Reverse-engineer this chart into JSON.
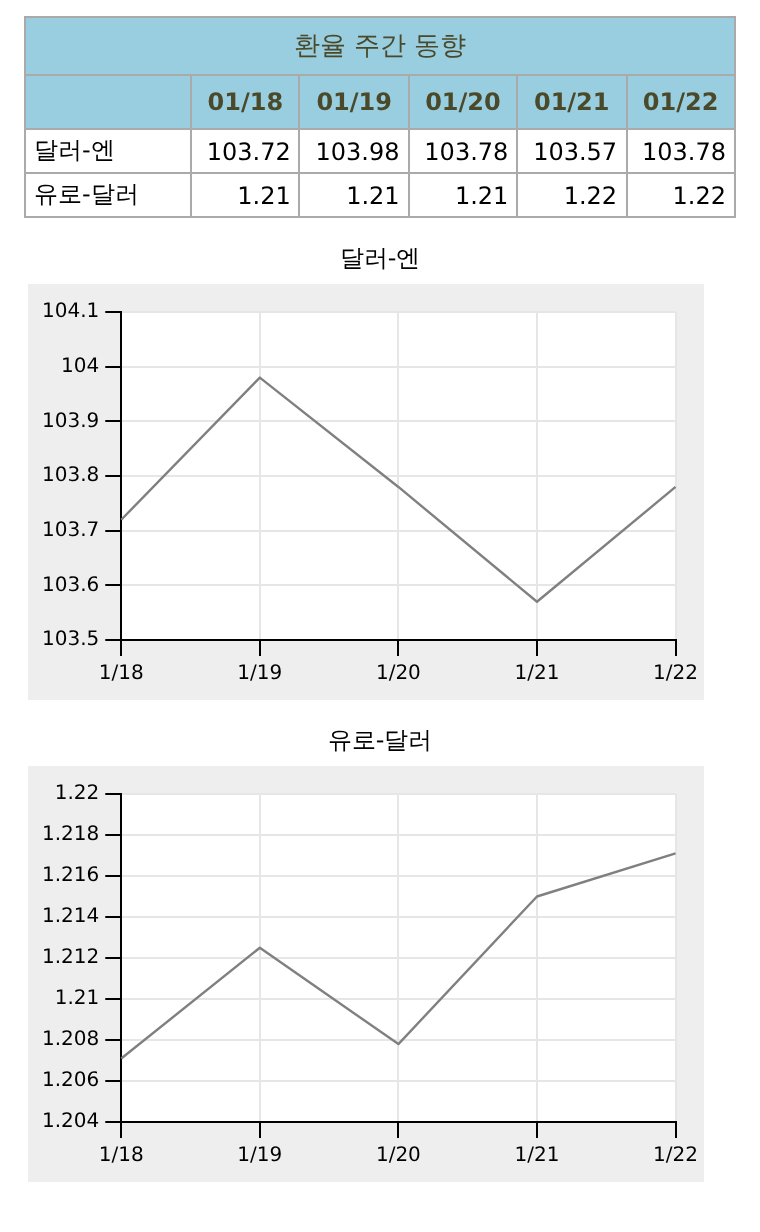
{
  "chart_data": [
    {
      "type": "other",
      "title": "환율 주간 동향",
      "categories": [
        "01/18",
        "01/19",
        "01/20",
        "01/21",
        "01/22"
      ],
      "data_labels": true,
      "series": [
        {
          "name": "달러-엔",
          "values": [
            103.72,
            103.98,
            103.78,
            103.57,
            103.78
          ]
        },
        {
          "name": "유로-달러",
          "values": [
            1.21,
            1.21,
            1.21,
            1.22,
            1.22
          ]
        }
      ]
    },
    {
      "type": "line",
      "title": "달러-엔",
      "categories": [
        "1/18",
        "1/19",
        "1/20",
        "1/21",
        "1/22"
      ],
      "series": [
        {
          "color": "#808080",
          "values": [
            103.72,
            103.98,
            103.78,
            103.57,
            103.78
          ]
        }
      ],
      "ylim": [
        103.5,
        104.1
      ],
      "yticks": [
        103.5,
        103.6,
        103.7,
        103.8,
        103.9,
        104,
        104.1
      ],
      "grid": true,
      "legend": false
    },
    {
      "type": "line",
      "title": "유로-달러",
      "categories": [
        "1/18",
        "1/19",
        "1/20",
        "1/21",
        "1/22"
      ],
      "series": [
        {
          "color": "#808080",
          "values": [
            1.2071,
            1.2125,
            1.2078,
            1.215,
            1.2171
          ]
        }
      ],
      "ylim": [
        1.204,
        1.22
      ],
      "yticks": [
        1.204,
        1.206,
        1.208,
        1.21,
        1.212,
        1.214,
        1.216,
        1.218,
        1.22
      ],
      "grid": true,
      "legend": false
    }
  ]
}
